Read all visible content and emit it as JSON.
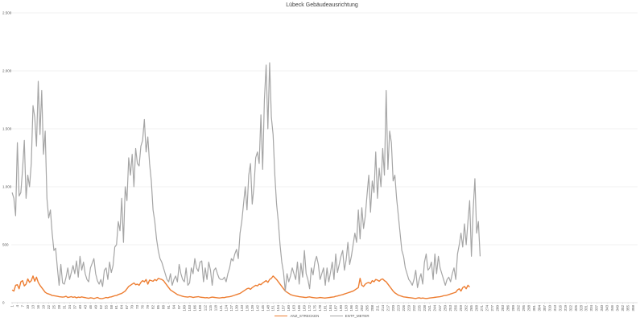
{
  "chart_data": {
    "type": "line",
    "title": "Lübeck Gebäudeausrichtung",
    "xlabel": "",
    "ylabel": "",
    "ylim": [
      0,
      2500
    ],
    "yticks": [
      {
        "value": 0,
        "label": "0"
      },
      {
        "value": 500,
        "label": "500"
      },
      {
        "value": 1000,
        "label": "1.000"
      },
      {
        "value": 1500,
        "label": "1.500"
      },
      {
        "value": 2000,
        "label": "2.000"
      },
      {
        "value": 2500,
        "label": "2.500"
      }
    ],
    "x_start": 1,
    "x_end": 360,
    "xtick_step": 3,
    "grid": true,
    "legend_position": "bottom",
    "series": [
      {
        "name": "ANZ_STRECKEN",
        "color": "#ED7D31",
        "values": [
          110,
          100,
          150,
          155,
          120,
          180,
          190,
          145,
          160,
          205,
          175,
          190,
          230,
          185,
          220,
          175,
          150,
          130,
          110,
          90,
          80,
          75,
          70,
          62,
          60,
          58,
          55,
          52,
          50,
          48,
          50,
          55,
          45,
          48,
          52,
          46,
          50,
          42,
          48,
          45,
          50,
          46,
          44,
          40,
          38,
          42,
          40,
          36,
          40,
          45,
          38,
          35,
          36,
          40,
          45,
          42,
          48,
          50,
          55,
          60,
          62,
          70,
          75,
          80,
          90,
          100,
          120,
          140,
          150,
          160,
          170,
          155,
          160,
          150,
          175,
          190,
          180,
          200,
          160,
          195,
          190,
          185,
          200,
          190,
          210,
          205,
          200,
          190,
          170,
          150,
          130,
          110,
          100,
          90,
          80,
          70,
          65,
          60,
          55,
          52,
          50,
          48,
          52,
          50,
          45,
          48,
          50,
          52,
          48,
          46,
          45,
          42,
          44,
          40,
          45,
          48,
          46,
          44,
          42,
          40,
          42,
          45,
          44,
          48,
          50,
          52,
          55,
          60,
          65,
          70,
          75,
          80,
          90,
          100,
          110,
          120,
          125,
          115,
          130,
          140,
          150,
          145,
          160,
          155,
          170,
          180,
          190,
          175,
          200,
          210,
          230,
          215,
          200,
          180,
          160,
          140,
          120,
          100,
          90,
          80,
          70,
          65,
          60,
          58,
          55,
          52,
          50,
          48,
          46,
          45,
          48,
          50,
          46,
          44,
          42,
          40,
          42,
          45,
          43,
          41,
          40,
          42,
          44,
          46,
          48,
          50,
          55,
          58,
          62,
          66,
          70,
          75,
          80,
          85,
          90,
          95,
          100,
          110,
          120,
          130,
          210,
          150,
          140,
          160,
          170,
          175,
          165,
          190,
          180,
          200,
          195,
          185,
          200,
          205,
          190,
          180,
          160,
          140,
          120,
          100,
          85,
          75,
          65,
          60,
          55,
          50,
          48,
          46,
          44,
          42,
          40,
          38,
          36,
          40,
          42,
          38,
          40,
          38,
          36,
          38,
          40,
          42,
          44,
          46,
          48,
          50,
          52,
          55,
          60,
          62,
          65,
          70,
          75,
          80,
          85,
          90,
          110,
          120,
          100,
          130,
          140,
          120,
          150,
          135
        ]
      },
      {
        "name": "ENTF_METER",
        "color": "#A5A5A5",
        "values": [
          950,
          900,
          750,
          1380,
          920,
          950,
          1150,
          1400,
          900,
          1100,
          1000,
          1200,
          1700,
          1600,
          1350,
          1910,
          1450,
          1830,
          1280,
          1480,
          900,
          730,
          800,
          600,
          450,
          470,
          300,
          150,
          330,
          170,
          160,
          220,
          300,
          200,
          260,
          320,
          250,
          360,
          220,
          400,
          280,
          350,
          250,
          200,
          180,
          300,
          340,
          380,
          250,
          190,
          160,
          200,
          140,
          280,
          300,
          200,
          350,
          260,
          320,
          480,
          500,
          700,
          620,
          900,
          520,
          1000,
          880,
          1250,
          1100,
          1280,
          1000,
          1330,
          1200,
          1180,
          1350,
          1400,
          1580,
          1300,
          1430,
          1200,
          1050,
          800,
          700,
          550,
          450,
          380,
          350,
          300,
          250,
          200,
          180,
          250,
          150,
          200,
          230,
          180,
          330,
          250,
          200,
          180,
          300,
          150,
          170,
          300,
          250,
          380,
          300,
          270,
          350,
          360,
          180,
          300,
          200,
          350,
          280,
          150,
          280,
          300,
          250,
          210,
          200,
          200,
          220,
          180,
          250,
          300,
          380,
          360,
          420,
          460,
          380,
          600,
          700,
          850,
          1000,
          800,
          1100,
          1200,
          850,
          1000,
          1250,
          1300,
          1200,
          1620,
          1150,
          1750,
          2050,
          1500,
          2070,
          1600,
          1450,
          1100,
          850,
          700,
          500,
          350,
          260,
          100,
          250,
          180,
          230,
          300,
          250,
          200,
          350,
          160,
          340,
          220,
          450,
          250,
          200,
          120,
          300,
          240,
          350,
          400,
          330,
          200,
          250,
          300,
          150,
          300,
          180,
          260,
          350,
          200,
          420,
          260,
          330,
          400,
          450,
          280,
          370,
          520,
          330,
          400,
          500,
          600,
          520,
          800,
          550,
          820,
          640,
          750,
          930,
          1100,
          780,
          1050,
          950,
          1300,
          900,
          1160,
          1000,
          1330,
          1100,
          1830,
          1150,
          1480,
          1380,
          1050,
          1100,
          900,
          750,
          600,
          450,
          400,
          300,
          250,
          200,
          180,
          150,
          200,
          280,
          130,
          200,
          250,
          160,
          350,
          420,
          280,
          300,
          350,
          200,
          420,
          250,
          400,
          300,
          250,
          200,
          150,
          200,
          220,
          180,
          250,
          300,
          200,
          420,
          500,
          600,
          480,
          680,
          500,
          700,
          880,
          400,
          800,
          1070,
          600,
          700,
          400
        ]
      }
    ]
  }
}
